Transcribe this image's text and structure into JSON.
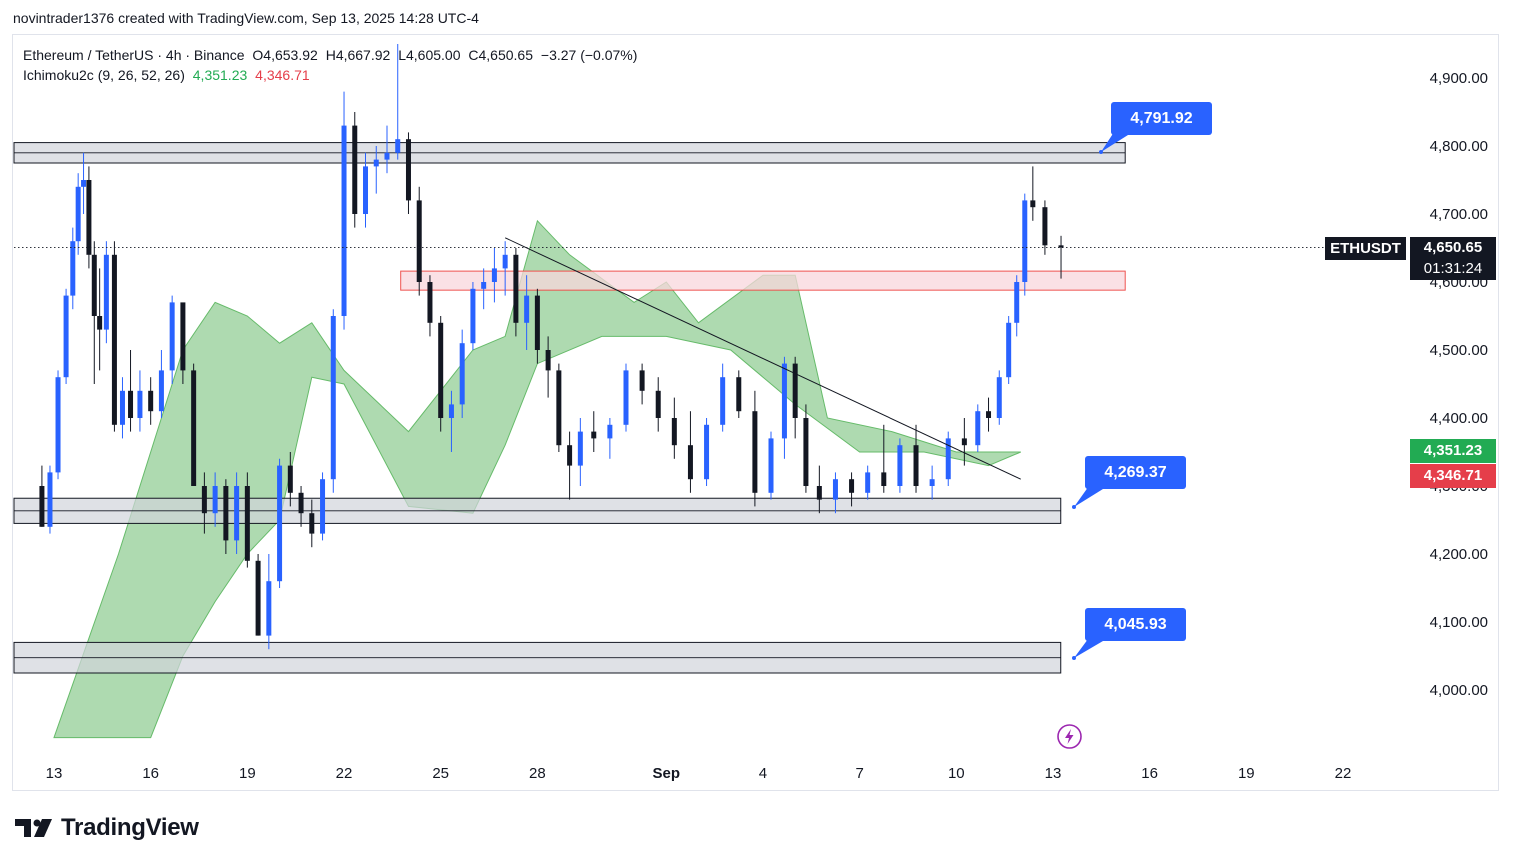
{
  "credit": "novintrader1376 created with TradingView.com, Sep 13, 2025 14:28 UTC-4",
  "legend": {
    "symbol_line": [
      "Ethereum / TetherUS · 4h · Binance",
      "O4,653.92",
      "H4,667.92",
      "L4,605.00",
      "C4,650.65",
      "−3.27 (−0.07%)"
    ],
    "indicator_name": "Ichimoku2c (9, 26, 52, 26)",
    "indicator_value_1": "4,351.23",
    "indicator_value_2": "4,346.71"
  },
  "colors": {
    "up": "#2962ff",
    "down": "#131722",
    "cloud": "#a5d6a7",
    "cloud_edge_red": "#ef5350",
    "cloud_edge_green": "#66bb6a",
    "zone_gray": "#d1d4dc",
    "zone_red": "#f8d7dc",
    "accent": "#2962ff",
    "ind_green": "#22ab53",
    "ind_red": "#e53e4a"
  },
  "price_tag": {
    "symbol": "ETHUSDT",
    "price": "4,650.65",
    "countdown": "01:31:24"
  },
  "indicator_tags": {
    "value_1": "4,351.23",
    "value_2": "4,346.71"
  },
  "callouts": [
    "4,791.92",
    "4,269.37",
    "4,045.93"
  ],
  "brand": "TradingView",
  "chart_data": {
    "type": "candlestick",
    "symbol": "ETHUSDT",
    "timeframe": "4h",
    "exchange": "Binance",
    "y_axis": {
      "ticks": [
        4000,
        4100,
        4200,
        4300,
        4400,
        4500,
        4600,
        4700,
        4800,
        4900
      ],
      "tick_labels": [
        "4,000.00",
        "4,100.00",
        "4,200.00",
        "4,300.00",
        "4,400.00",
        "4,500.00",
        "4,600.00",
        "4,700.00",
        "4,800.00",
        "4,900.00"
      ],
      "visible_labels": [
        "4,900.00",
        "4,800.00",
        "4,700.00",
        "4,600.00",
        "4,500.00",
        "4,400.00",
        "4,300.00",
        "4,200.00",
        "4,100.00",
        "4,000.00"
      ],
      "range": [
        3920,
        4950
      ]
    },
    "x_axis": {
      "labels": [
        "13",
        "16",
        "19",
        "22",
        "25",
        "28",
        "Sep",
        "4",
        "7",
        "10",
        "13",
        "16",
        "19",
        "22"
      ],
      "range": [
        "2025-08-13",
        "2025-09-22"
      ]
    },
    "zones": [
      {
        "kind": "resistance",
        "low": 4775,
        "high": 4805,
        "from": "2025-08-13",
        "to": "2025-09-14"
      },
      {
        "kind": "resistance-red",
        "low": 4588,
        "high": 4616,
        "from": "2025-08-25",
        "to": "2025-09-14"
      },
      {
        "kind": "support",
        "low": 4245,
        "high": 4282,
        "from": "2025-08-13",
        "to": "2025-09-12"
      },
      {
        "kind": "support",
        "low": 4025,
        "high": 4070,
        "from": "2025-08-13",
        "to": "2025-09-12"
      }
    ],
    "trendline": {
      "from": {
        "date": "2025-08-27",
        "price": 4665
      },
      "to": {
        "date": "2025-09-12",
        "price": 4310
      }
    },
    "last": {
      "open": 4653.92,
      "high": 4667.92,
      "low": 4605.0,
      "close": 4650.65,
      "change": -3.27,
      "change_pct": -0.07
    },
    "ichimoku": {
      "span_a": 4351.23,
      "span_b": 4346.71
    },
    "callout_levels": [
      4791.92,
      4269.37,
      4045.93
    ],
    "candles": [
      [
        "2025-08-13",
        4300,
        4330,
        4240,
        4240
      ],
      [
        "2025-08-13",
        4240,
        4330,
        4230,
        4320
      ],
      [
        "2025-08-13",
        4320,
        4470,
        4310,
        4460
      ],
      [
        "2025-08-13",
        4460,
        4590,
        4450,
        4580
      ],
      [
        "2025-08-14",
        4580,
        4680,
        4560,
        4660
      ],
      [
        "2025-08-14",
        4660,
        4760,
        4640,
        4740
      ],
      [
        "2025-08-14",
        4740,
        4790,
        4700,
        4750
      ],
      [
        "2025-08-14",
        4750,
        4770,
        4620,
        4640
      ],
      [
        "2025-08-14",
        4640,
        4660,
        4450,
        4550
      ],
      [
        "2025-08-14",
        4550,
        4620,
        4470,
        4530
      ],
      [
        "2025-08-15",
        4530,
        4660,
        4510,
        4640
      ],
      [
        "2025-08-15",
        4640,
        4660,
        4380,
        4390
      ],
      [
        "2025-08-15",
        4390,
        4460,
        4370,
        4440
      ],
      [
        "2025-08-15",
        4440,
        4500,
        4380,
        4400
      ],
      [
        "2025-08-16",
        4400,
        4470,
        4380,
        4440
      ],
      [
        "2025-08-16",
        4440,
        4460,
        4390,
        4410
      ],
      [
        "2025-08-16",
        4410,
        4500,
        4400,
        4470
      ],
      [
        "2025-08-17",
        4470,
        4580,
        4450,
        4570
      ],
      [
        "2025-08-17",
        4570,
        4560,
        4450,
        4470
      ],
      [
        "2025-08-17",
        4470,
        4480,
        4300,
        4300
      ],
      [
        "2025-08-18",
        4300,
        4320,
        4230,
        4260
      ],
      [
        "2025-08-18",
        4260,
        4320,
        4240,
        4300
      ],
      [
        "2025-08-18",
        4300,
        4310,
        4200,
        4220
      ],
      [
        "2025-08-19",
        4220,
        4320,
        4200,
        4300
      ],
      [
        "2025-08-19",
        4300,
        4320,
        4180,
        4190
      ],
      [
        "2025-08-19",
        4190,
        4200,
        4080,
        4080
      ],
      [
        "2025-08-20",
        4080,
        4200,
        4060,
        4160
      ],
      [
        "2025-08-20",
        4160,
        4340,
        4150,
        4330
      ],
      [
        "2025-08-20",
        4330,
        4350,
        4270,
        4290
      ],
      [
        "2025-08-21",
        4290,
        4300,
        4240,
        4260
      ],
      [
        "2025-08-21",
        4260,
        4280,
        4210,
        4230
      ],
      [
        "2025-08-21",
        4230,
        4320,
        4220,
        4310
      ],
      [
        "2025-08-22",
        4310,
        4560,
        4290,
        4550
      ],
      [
        "2025-08-22",
        4550,
        4880,
        4530,
        4830
      ],
      [
        "2025-08-22",
        4830,
        4850,
        4680,
        4700
      ],
      [
        "2025-08-23",
        4700,
        4790,
        4680,
        4770
      ],
      [
        "2025-08-23",
        4770,
        4800,
        4730,
        4780
      ],
      [
        "2025-08-23",
        4780,
        4830,
        4760,
        4790
      ],
      [
        "2025-08-24",
        4790,
        4950,
        4780,
        4810
      ],
      [
        "2025-08-24",
        4810,
        4820,
        4700,
        4720
      ],
      [
        "2025-08-24",
        4720,
        4740,
        4580,
        4600
      ],
      [
        "2025-08-25",
        4600,
        4610,
        4520,
        4540
      ],
      [
        "2025-08-25",
        4540,
        4550,
        4380,
        4400
      ],
      [
        "2025-08-25",
        4400,
        4440,
        4350,
        4420
      ],
      [
        "2025-08-26",
        4420,
        4530,
        4400,
        4510
      ],
      [
        "2025-08-26",
        4510,
        4600,
        4500,
        4590
      ],
      [
        "2025-08-26",
        4590,
        4620,
        4560,
        4600
      ],
      [
        "2025-08-27",
        4600,
        4650,
        4570,
        4620
      ],
      [
        "2025-08-27",
        4620,
        4660,
        4580,
        4640
      ],
      [
        "2025-08-27",
        4640,
        4650,
        4520,
        4540
      ],
      [
        "2025-08-28",
        4540,
        4610,
        4500,
        4580
      ],
      [
        "2025-08-28",
        4580,
        4590,
        4480,
        4500
      ],
      [
        "2025-08-28",
        4500,
        4520,
        4430,
        4470
      ],
      [
        "2025-08-29",
        4470,
        4480,
        4350,
        4360
      ],
      [
        "2025-08-29",
        4360,
        4380,
        4280,
        4330
      ],
      [
        "2025-08-29",
        4330,
        4400,
        4300,
        4380
      ],
      [
        "2025-08-30",
        4380,
        4410,
        4350,
        4370
      ],
      [
        "2025-08-30",
        4370,
        4400,
        4340,
        4390
      ],
      [
        "2025-08-31",
        4390,
        4480,
        4380,
        4470
      ],
      [
        "2025-08-31",
        4470,
        4480,
        4420,
        4440
      ],
      [
        "2025-09-01",
        4440,
        4460,
        4380,
        4400
      ],
      [
        "2025-09-01",
        4400,
        4430,
        4340,
        4360
      ],
      [
        "2025-09-02",
        4360,
        4410,
        4290,
        4310
      ],
      [
        "2025-09-02",
        4310,
        4400,
        4300,
        4390
      ],
      [
        "2025-09-03",
        4390,
        4480,
        4380,
        4460
      ],
      [
        "2025-09-03",
        4460,
        4470,
        4400,
        4410
      ],
      [
        "2025-09-04",
        4410,
        4440,
        4270,
        4290
      ],
      [
        "2025-09-04",
        4290,
        4380,
        4280,
        4370
      ],
      [
        "2025-09-05",
        4370,
        4490,
        4340,
        4480
      ],
      [
        "2025-09-05",
        4480,
        4490,
        4370,
        4400
      ],
      [
        "2025-09-05",
        4400,
        4420,
        4290,
        4300
      ],
      [
        "2025-09-06",
        4300,
        4330,
        4260,
        4280
      ],
      [
        "2025-09-06",
        4280,
        4320,
        4260,
        4310
      ],
      [
        "2025-09-07",
        4310,
        4320,
        4270,
        4290
      ],
      [
        "2025-09-07",
        4290,
        4330,
        4280,
        4320
      ],
      [
        "2025-09-08",
        4320,
        4390,
        4290,
        4300
      ],
      [
        "2025-09-08",
        4300,
        4370,
        4290,
        4360
      ],
      [
        "2025-09-09",
        4360,
        4390,
        4290,
        4300
      ],
      [
        "2025-09-09",
        4300,
        4330,
        4280,
        4310
      ],
      [
        "2025-09-10",
        4310,
        4380,
        4300,
        4370
      ],
      [
        "2025-09-10",
        4370,
        4400,
        4330,
        4360
      ],
      [
        "2025-09-11",
        4360,
        4420,
        4350,
        4410
      ],
      [
        "2025-09-11",
        4410,
        4430,
        4380,
        4400
      ],
      [
        "2025-09-11",
        4400,
        4470,
        4390,
        4460
      ],
      [
        "2025-09-12",
        4460,
        4550,
        4450,
        4540
      ],
      [
        "2025-09-12",
        4540,
        4610,
        4520,
        4600
      ],
      [
        "2025-09-12",
        4600,
        4730,
        4580,
        4720
      ],
      [
        "2025-09-12",
        4720,
        4770,
        4690,
        4710
      ],
      [
        "2025-09-13",
        4710,
        4720,
        4640,
        4653.92
      ],
      [
        "2025-09-13",
        4653.92,
        4667.92,
        4605,
        4650.65
      ]
    ]
  }
}
